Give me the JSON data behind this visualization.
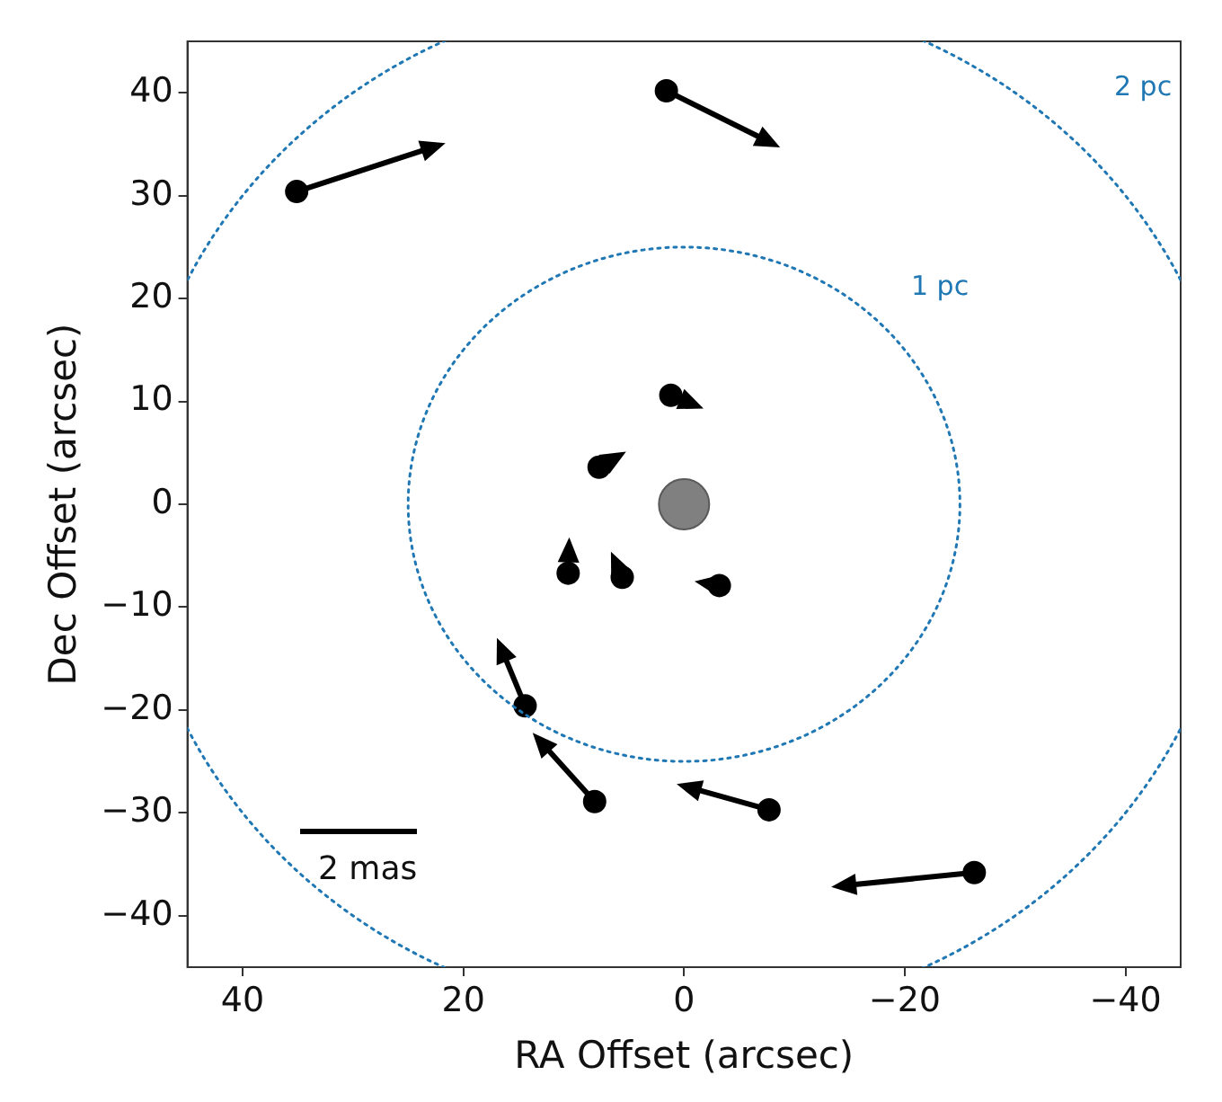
{
  "chart_data": {
    "type": "scatter",
    "xlabel": "RA Offset (arcsec)",
    "ylabel": "Dec Offset (arcsec)",
    "xlim": [
      45,
      -45
    ],
    "ylim": [
      -45,
      45
    ],
    "xticks": [
      40,
      20,
      0,
      {
        "value": -20,
        "label": "−20"
      },
      {
        "value": -40,
        "label": "−40"
      }
    ],
    "yticks": [
      {
        "value": -40,
        "label": "−40"
      },
      {
        "value": -30,
        "label": "−30"
      },
      {
        "value": -20,
        "label": "−20"
      },
      {
        "value": -10,
        "label": "−10"
      },
      0,
      10,
      20,
      30,
      40
    ],
    "grid": false,
    "legend": false,
    "annotations": [
      "1 pc",
      "2 pc",
      "2 mas"
    ],
    "series": [
      {
        "type": "bubble",
        "color": "#808080",
        "x": [
          0
        ],
        "values": [
          0
        ],
        "sizes": [
          1
        ]
      },
      {
        "type": "scatter",
        "marker": "circle",
        "color": "#000000",
        "x": [
          35.1,
          1.6,
          1.2,
          7.7,
          10.5,
          5.6,
          -3.2,
          14.4,
          8.1,
          -7.7,
          -26.3
        ],
        "values": [
          30.4,
          40.2,
          10.6,
          3.6,
          -6.7,
          -7.1,
          -7.9,
          -19.6,
          -28.9,
          -29.7,
          -35.8
        ]
      }
    ]
  }
}
